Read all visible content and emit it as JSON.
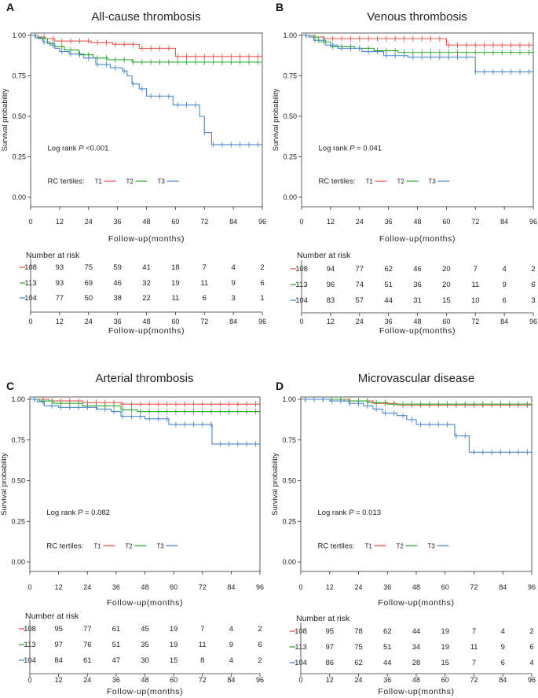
{
  "figure": {
    "xlabel": "Follow-up(months)",
    "ylabel": "Survival probability",
    "risk_title": "Number at risk",
    "tertile_label": "RC tertiles:",
    "x_ticks": [
      0,
      12,
      24,
      36,
      48,
      60,
      72,
      84,
      96
    ],
    "y_ticks": [
      "0.00",
      "0.25",
      "0.50",
      "0.75",
      "1.00"
    ],
    "series_names": [
      "T1",
      "T2",
      "T3"
    ],
    "colors": {
      "T1": "#e8524a",
      "T2": "#2fa82f",
      "T3": "#4a86c8",
      "axis": "#333333"
    }
  },
  "chart_data": [
    {
      "panel": "A",
      "title": "All-cause thrombosis",
      "type": "line",
      "logrank_prefix": "Log rank ",
      "logrank_p": "P",
      "logrank_value": " <0.001",
      "ylim": [
        0,
        1
      ],
      "xlim": [
        0,
        96
      ],
      "series": [
        {
          "name": "T1",
          "steps": [
            [
              0,
              1
            ],
            [
              3,
              0.99
            ],
            [
              6,
              0.98
            ],
            [
              10,
              0.965
            ],
            [
              25,
              0.955
            ],
            [
              34,
              0.945
            ],
            [
              45,
              0.92
            ],
            [
              60,
              0.87
            ],
            [
              96,
              0.87
            ]
          ]
        },
        {
          "name": "T2",
          "steps": [
            [
              0,
              1
            ],
            [
              3,
              0.98
            ],
            [
              7,
              0.95
            ],
            [
              10,
              0.93
            ],
            [
              14,
              0.91
            ],
            [
              20,
              0.88
            ],
            [
              26,
              0.86
            ],
            [
              32,
              0.85
            ],
            [
              42,
              0.835
            ],
            [
              96,
              0.835
            ]
          ]
        },
        {
          "name": "T3",
          "steps": [
            [
              0,
              1
            ],
            [
              2,
              0.985
            ],
            [
              5,
              0.96
            ],
            [
              8,
              0.94
            ],
            [
              10,
              0.92
            ],
            [
              12,
              0.9
            ],
            [
              16,
              0.885
            ],
            [
              22,
              0.86
            ],
            [
              27,
              0.82
            ],
            [
              33,
              0.8
            ],
            [
              38,
              0.78
            ],
            [
              40,
              0.75
            ],
            [
              42,
              0.7
            ],
            [
              45,
              0.67
            ],
            [
              48,
              0.625
            ],
            [
              59,
              0.57
            ],
            [
              70,
              0.5
            ],
            [
              72,
              0.4
            ],
            [
              75,
              0.325
            ],
            [
              96,
              0.325
            ]
          ]
        }
      ],
      "risk": {
        "T1": [
          108,
          93,
          75,
          59,
          41,
          18,
          7,
          4,
          2
        ],
        "T2": [
          113,
          93,
          69,
          46,
          32,
          19,
          11,
          9,
          6
        ],
        "T3": [
          104,
          77,
          50,
          38,
          22,
          11,
          6,
          3,
          1
        ]
      }
    },
    {
      "panel": "B",
      "title": "Venous thrombosis",
      "type": "line",
      "logrank_prefix": "Log rank ",
      "logrank_p": "P",
      "logrank_value": " = 0.041",
      "ylim": [
        0,
        1
      ],
      "xlim": [
        0,
        96
      ],
      "series": [
        {
          "name": "T1",
          "steps": [
            [
              0,
              1
            ],
            [
              5,
              0.99
            ],
            [
              9,
              0.98
            ],
            [
              60,
              0.94
            ],
            [
              96,
              0.94
            ]
          ]
        },
        {
          "name": "T2",
          "steps": [
            [
              0,
              1
            ],
            [
              3,
              0.99
            ],
            [
              7,
              0.96
            ],
            [
              12,
              0.93
            ],
            [
              22,
              0.92
            ],
            [
              30,
              0.905
            ],
            [
              40,
              0.895
            ],
            [
              96,
              0.895
            ]
          ]
        },
        {
          "name": "T3",
          "steps": [
            [
              0,
              1
            ],
            [
              3,
              0.99
            ],
            [
              5,
              0.97
            ],
            [
              10,
              0.94
            ],
            [
              15,
              0.92
            ],
            [
              25,
              0.9
            ],
            [
              34,
              0.875
            ],
            [
              44,
              0.865
            ],
            [
              72,
              0.775
            ],
            [
              96,
              0.775
            ]
          ]
        }
      ],
      "risk": {
        "T1": [
          108,
          94,
          77,
          62,
          46,
          20,
          7,
          4,
          2
        ],
        "T2": [
          113,
          96,
          74,
          51,
          36,
          20,
          11,
          9,
          6
        ],
        "T3": [
          104,
          83,
          57,
          44,
          31,
          15,
          10,
          6,
          3
        ]
      }
    },
    {
      "panel": "C",
      "title": "Arterial thrombosis",
      "type": "line",
      "logrank_prefix": "Log rank ",
      "logrank_p": "P",
      "logrank_value": " = 0.082",
      "ylim": [
        0,
        1
      ],
      "xlim": [
        0,
        96
      ],
      "series": [
        {
          "name": "T1",
          "steps": [
            [
              0,
              1
            ],
            [
              8,
              0.99
            ],
            [
              22,
              0.98
            ],
            [
              38,
              0.97
            ],
            [
              96,
              0.97
            ]
          ]
        },
        {
          "name": "T2",
          "steps": [
            [
              0,
              1
            ],
            [
              4,
              0.99
            ],
            [
              10,
              0.975
            ],
            [
              22,
              0.96
            ],
            [
              38,
              0.935
            ],
            [
              45,
              0.925
            ],
            [
              96,
              0.925
            ]
          ]
        },
        {
          "name": "T3",
          "steps": [
            [
              0,
              1
            ],
            [
              3,
              0.985
            ],
            [
              6,
              0.96
            ],
            [
              12,
              0.95
            ],
            [
              28,
              0.94
            ],
            [
              34,
              0.925
            ],
            [
              38,
              0.895
            ],
            [
              48,
              0.88
            ],
            [
              58,
              0.845
            ],
            [
              76,
              0.725
            ],
            [
              96,
              0.725
            ]
          ]
        }
      ],
      "risk": {
        "T1": [
          108,
          95,
          77,
          61,
          45,
          19,
          7,
          4,
          2
        ],
        "T2": [
          113,
          97,
          76,
          51,
          35,
          19,
          11,
          9,
          6
        ],
        "T3": [
          104,
          84,
          61,
          47,
          30,
          15,
          8,
          4,
          2
        ]
      }
    },
    {
      "panel": "D",
      "title": "Microvascular disease",
      "type": "line",
      "logrank_prefix": "Log rank ",
      "logrank_p": "P",
      "logrank_value": " = 0.013",
      "ylim": [
        0,
        1
      ],
      "xlim": [
        0,
        96
      ],
      "series": [
        {
          "name": "T1",
          "steps": [
            [
              0,
              1
            ],
            [
              20,
              0.99
            ],
            [
              30,
              0.975
            ],
            [
              40,
              0.965
            ],
            [
              96,
              0.96
            ]
          ]
        },
        {
          "name": "T2",
          "steps": [
            [
              0,
              1
            ],
            [
              18,
              0.99
            ],
            [
              28,
              0.98
            ],
            [
              36,
              0.97
            ],
            [
              96,
              0.97
            ]
          ]
        },
        {
          "name": "T3",
          "steps": [
            [
              0,
              1
            ],
            [
              12,
              0.99
            ],
            [
              20,
              0.975
            ],
            [
              26,
              0.96
            ],
            [
              30,
              0.94
            ],
            [
              34,
              0.915
            ],
            [
              40,
              0.9
            ],
            [
              44,
              0.875
            ],
            [
              48,
              0.845
            ],
            [
              64,
              0.775
            ],
            [
              70,
              0.675
            ],
            [
              96,
              0.675
            ]
          ]
        }
      ],
      "risk": {
        "T1": [
          108,
          95,
          78,
          62,
          44,
          19,
          7,
          4,
          2
        ],
        "T2": [
          113,
          97,
          75,
          51,
          34,
          19,
          11,
          9,
          6
        ],
        "T3": [
          104,
          86,
          62,
          44,
          28,
          15,
          7,
          6,
          4
        ]
      }
    }
  ]
}
